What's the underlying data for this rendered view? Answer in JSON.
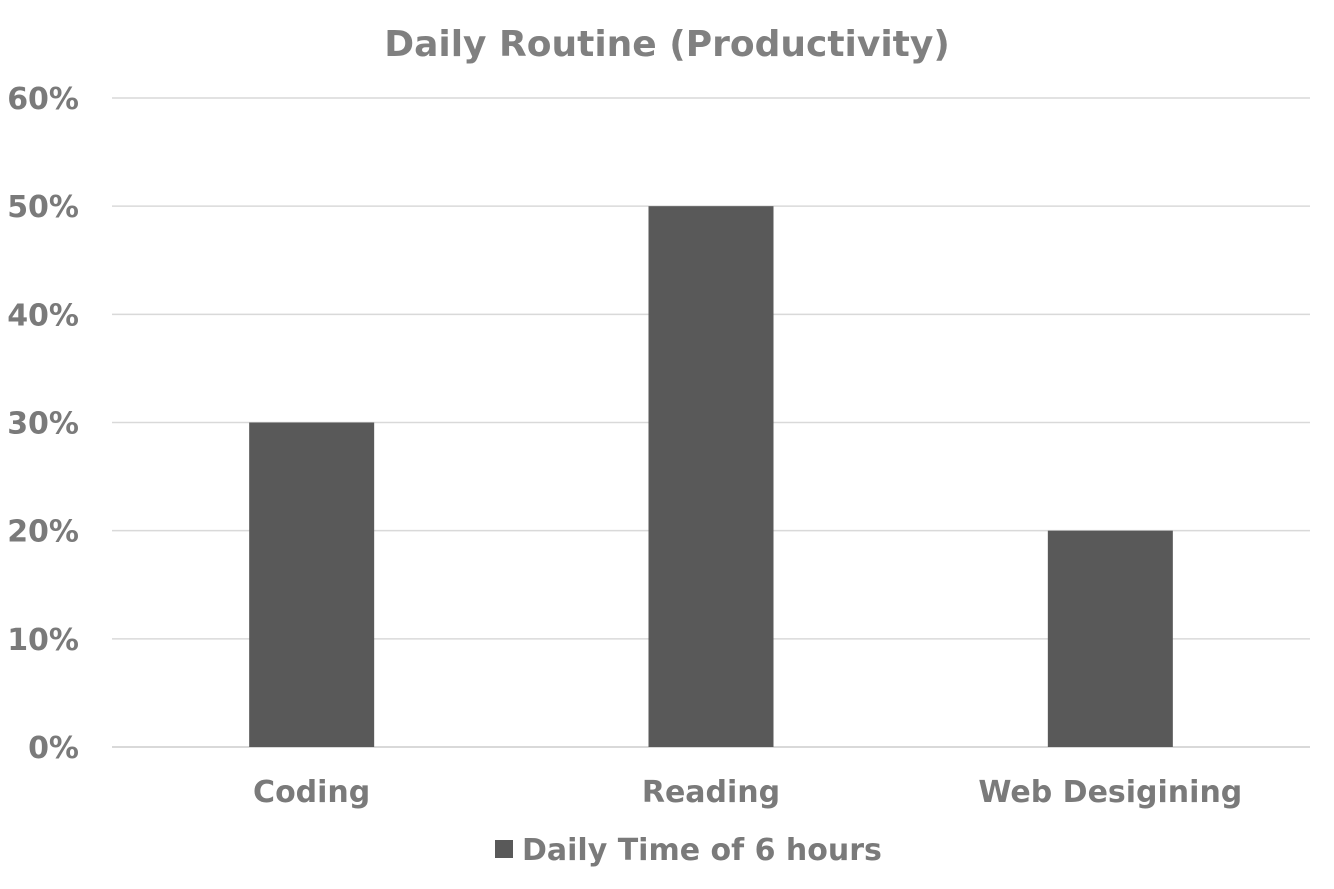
{
  "chart_data": {
    "type": "bar",
    "title": "Daily Routine (Productivity)",
    "categories": [
      "Coding",
      "Reading",
      "Web Desigining"
    ],
    "series": [
      {
        "name": "Daily Time of 6 hours",
        "values": [
          30,
          50,
          20
        ],
        "color": "#595959"
      }
    ],
    "y_ticks": [
      "0%",
      "10%",
      "20%",
      "30%",
      "40%",
      "50%",
      "60%"
    ],
    "ylim": [
      0,
      60
    ],
    "ytick_step": 10,
    "y_unit": "%",
    "grid": true,
    "gridline_color": "#d9d9d9",
    "legend_position": "bottom"
  }
}
